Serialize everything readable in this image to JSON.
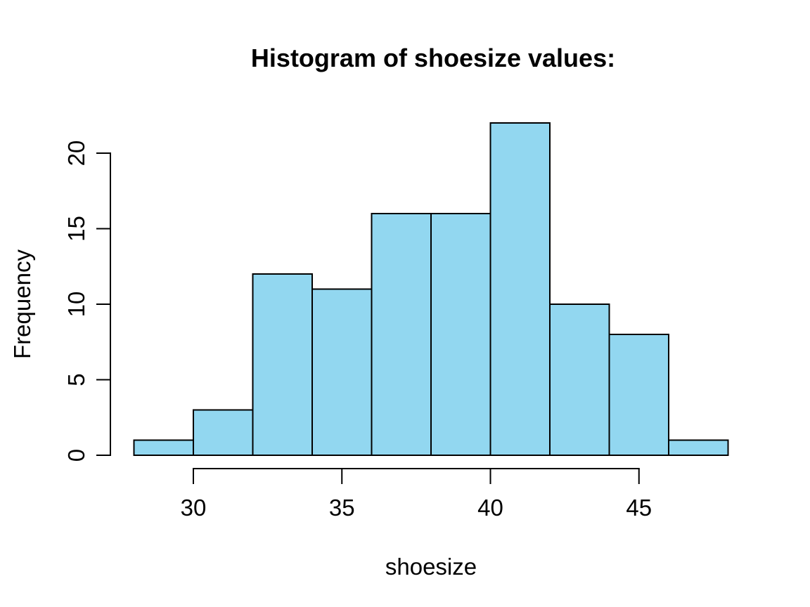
{
  "page": {
    "background": "#ffffff"
  },
  "chart_data": {
    "type": "bar",
    "chart_kind": "histogram",
    "title": "Histogram of shoesize values:",
    "xlabel": "shoesize",
    "ylabel": "Frequency",
    "bins": {
      "start": 28,
      "bin_width": 2,
      "counts": [
        1,
        3,
        12,
        11,
        16,
        16,
        22,
        10,
        8,
        1
      ]
    },
    "bin_edges": [
      28,
      30,
      32,
      34,
      36,
      38,
      40,
      42,
      44,
      46,
      48
    ],
    "x_tick_values": [
      30,
      35,
      40,
      45
    ],
    "x_tick_labels": [
      "30",
      "35",
      "40",
      "45"
    ],
    "y_tick_values": [
      0,
      5,
      10,
      15,
      20
    ],
    "y_tick_labels": [
      "0",
      "5",
      "10",
      "15",
      "20"
    ],
    "xlim": [
      28,
      48
    ],
    "ylim": [
      0,
      22
    ],
    "grid": false,
    "legend": false,
    "colors": {
      "bar_fill": "#92D7F0",
      "bar_border": "#000000",
      "axis": "#000000",
      "text": "#000000"
    }
  }
}
